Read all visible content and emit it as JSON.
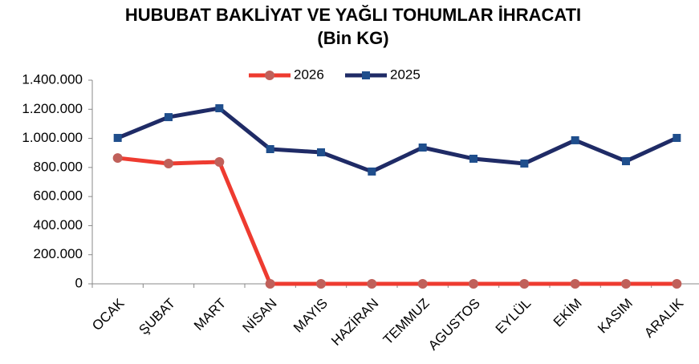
{
  "chart_data": {
    "type": "line",
    "title": "HUBUBAT BAKLİYAT VE YAĞLI TOHUMLAR İHRACATI",
    "subtitle": "(Bin KG)",
    "categories": [
      "OCAK",
      "ŞUBAT",
      "MART",
      "NİSAN",
      "MAYIS",
      "HAZİRAN",
      "TEMMUZ",
      "AGUSTOS",
      "EYLÜL",
      "EKİM",
      "KASIM",
      "ARALIK"
    ],
    "series": [
      {
        "name": "2026",
        "color": "#ee3b30",
        "marker_color": "#c0605a",
        "marker": "circle",
        "values": [
          865000,
          827000,
          838000,
          0,
          0,
          0,
          0,
          0,
          0,
          0,
          0,
          0
        ]
      },
      {
        "name": "2025",
        "color": "#1f2b66",
        "marker_color": "#1f4e8c",
        "marker": "square",
        "values": [
          1003000,
          1146000,
          1207000,
          926000,
          904000,
          772000,
          937000,
          860000,
          827000,
          987000,
          843000,
          1003000
        ]
      }
    ],
    "ylim": [
      0,
      1400000
    ],
    "yticks": [
      0,
      {
        "value": 200000,
        "label": "200.000"
      },
      {
        "value": 400000,
        "label": "400.000"
      },
      {
        "value": 600000,
        "label": "600.000"
      },
      {
        "value": 800000,
        "label": "800.000"
      },
      {
        "value": 1000000,
        "label": "1.000.000"
      },
      {
        "value": 1200000,
        "label": "1.200.000"
      },
      {
        "value": 1400000,
        "label": "1.400.000"
      }
    ],
    "grid": false,
    "legend": "top"
  }
}
